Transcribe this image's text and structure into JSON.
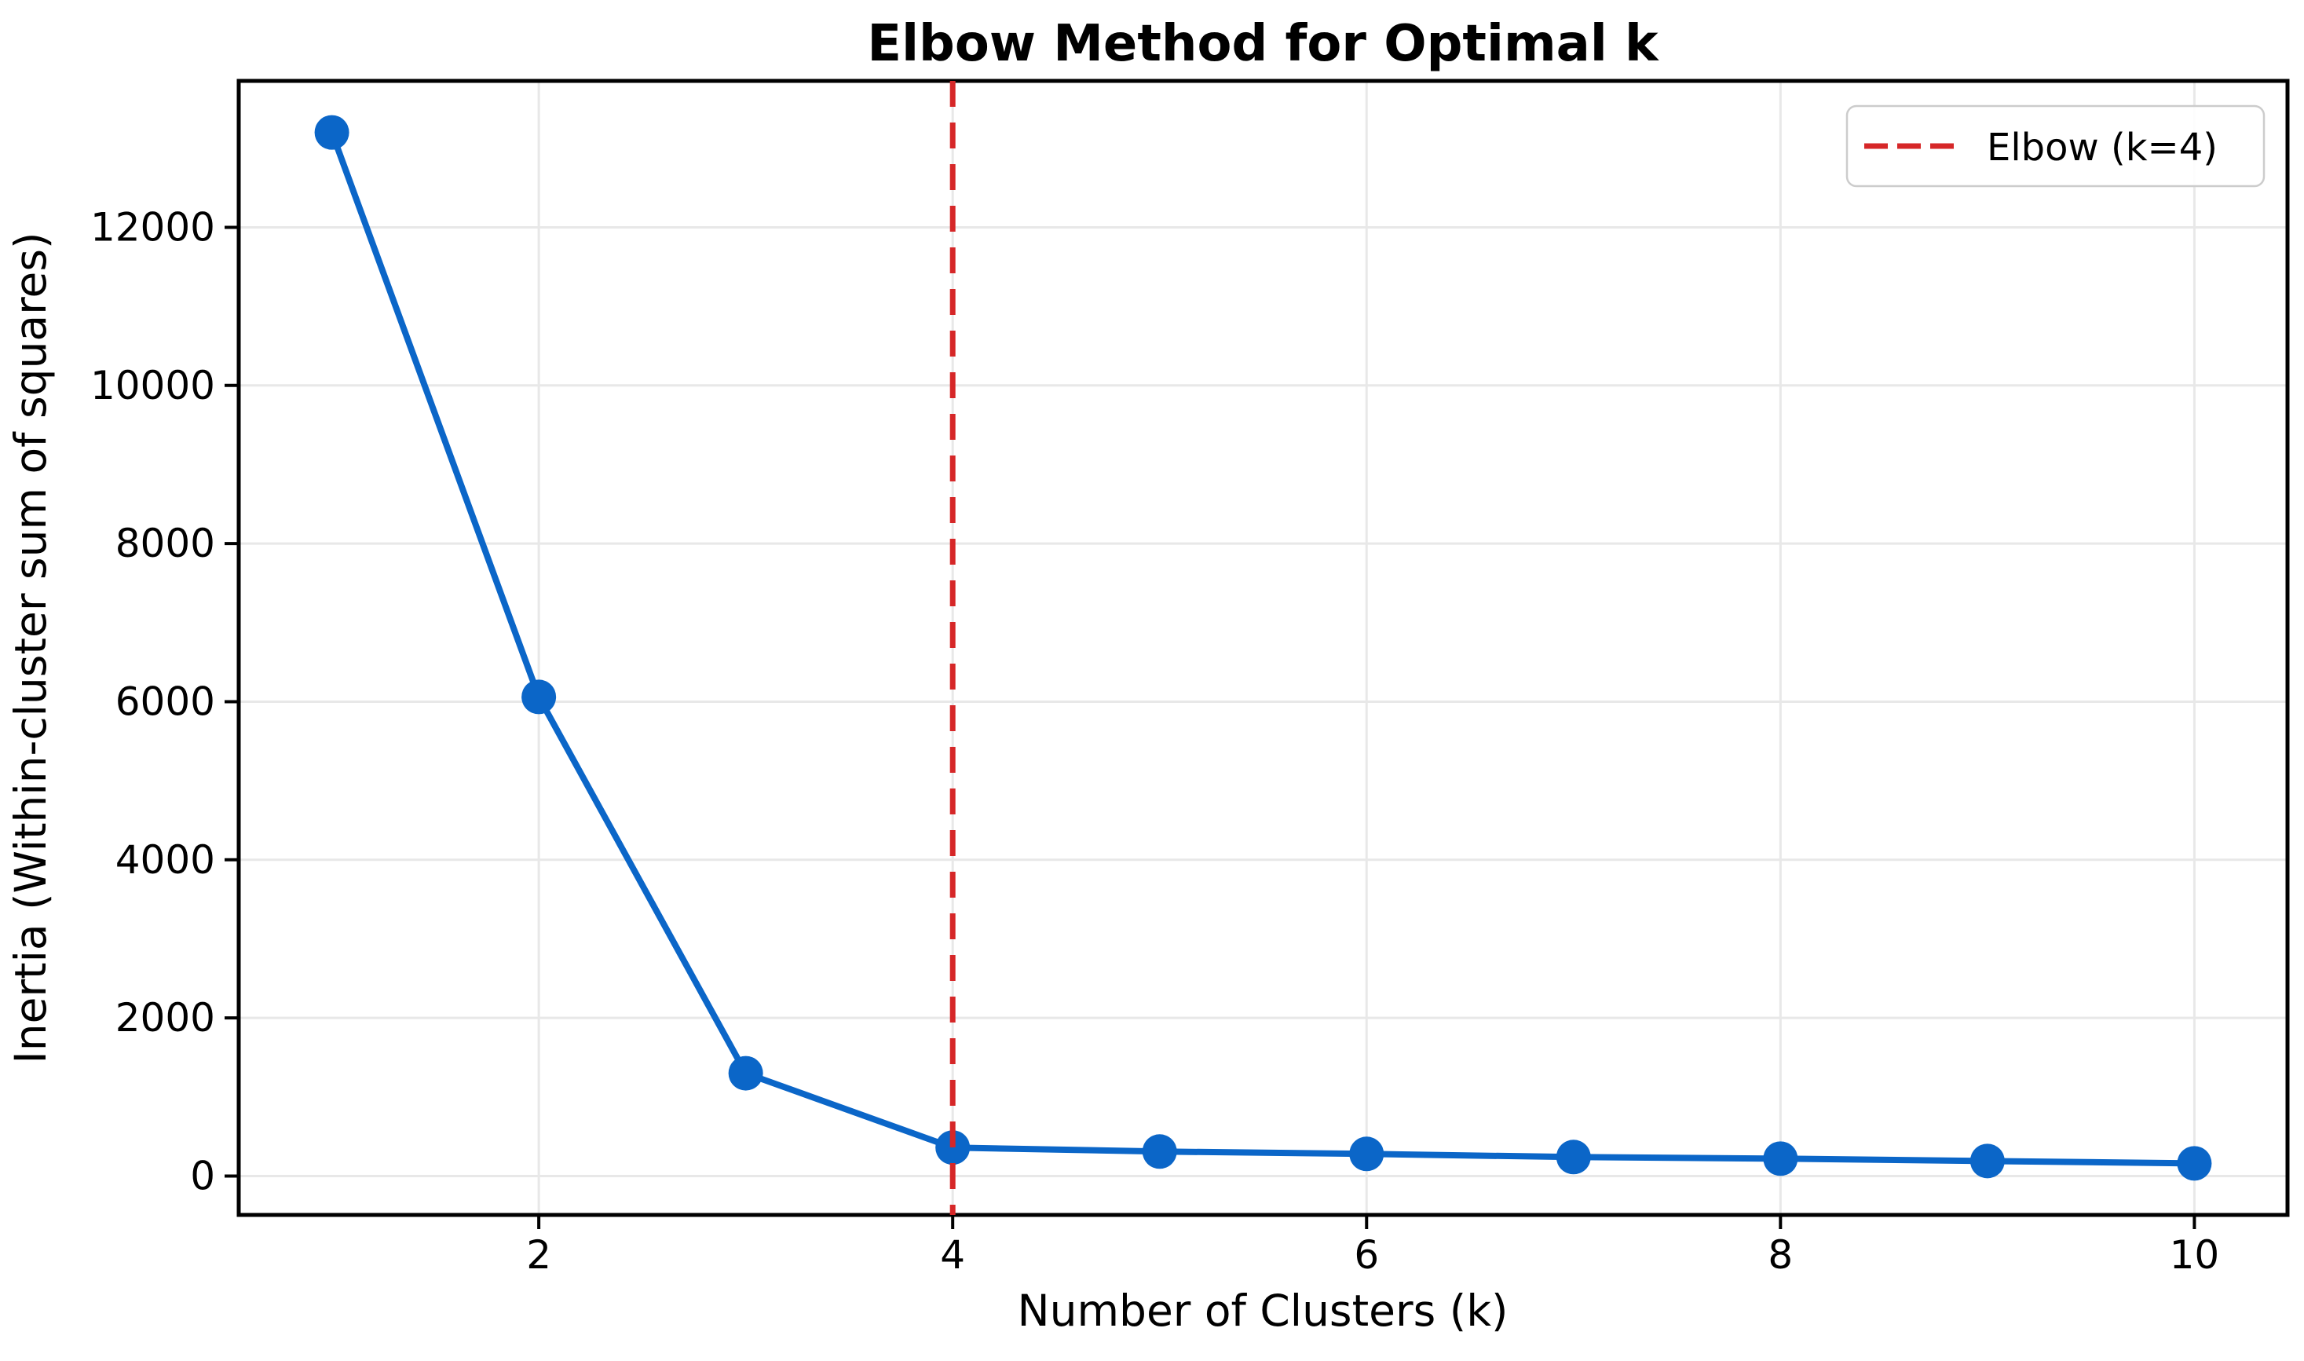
{
  "chart_data": {
    "type": "line",
    "title": "Elbow Method for Optimal k",
    "xlabel": "Number of Clusters (k)",
    "ylabel": "Inertia (Within-cluster sum of squares)",
    "x": [
      1,
      2,
      3,
      4,
      5,
      6,
      7,
      8,
      9,
      10
    ],
    "series": [
      {
        "name": "Inertia",
        "color": "#0b66c8",
        "marker": "circle",
        "values": [
          13200,
          6060,
          1300,
          360,
          310,
          280,
          240,
          220,
          190,
          160
        ]
      }
    ],
    "xticks": [
      2,
      4,
      6,
      8,
      10
    ],
    "yticks": [
      0,
      2000,
      4000,
      6000,
      8000,
      10000,
      12000
    ],
    "xlim": [
      0.55,
      10.45
    ],
    "ylim": [
      -492,
      13852
    ],
    "grid": true,
    "grid_color": "#e8e8e8",
    "spine_color": "#000000",
    "annotations": [
      {
        "type": "vline",
        "x": 4,
        "color": "#d62728",
        "style": "dashed"
      }
    ],
    "legend": {
      "position": "top-right",
      "entries": [
        {
          "label": "Elbow (k=4)",
          "color": "#d62728",
          "line_style": "dashed"
        }
      ]
    }
  }
}
